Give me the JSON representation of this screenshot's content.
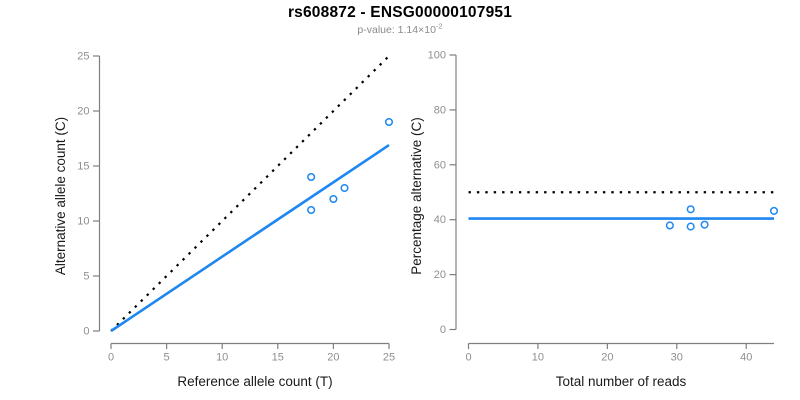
{
  "header": {
    "title": "rs608872 - ENSG00000107951",
    "subtitle_prefix": "p-value: 1.14×10",
    "subtitle_exponent": "-2"
  },
  "colors": {
    "accent_blue": "#1E87F0",
    "identity_black": "#000000",
    "axis_line_gray": "#7f7f7f",
    "tick_label_gray": "#8f8f8f",
    "axis_title_dark": "#1a1a1a",
    "subtitle_gray": "#8a8a8a",
    "background": "#ffffff"
  },
  "chart_data": [
    {
      "type": "scatter",
      "name": "allele-counts-panel",
      "xlabel": "Reference allele count (T)",
      "ylabel": "Alternative allele count (C)",
      "xlim": [
        0,
        25
      ],
      "ylim": [
        0,
        25
      ],
      "xticks": [
        0,
        5,
        10,
        15,
        20,
        25
      ],
      "yticks": [
        0,
        5,
        10,
        15,
        20,
        25
      ],
      "grid": false,
      "points": [
        {
          "x": 18,
          "y": 11
        },
        {
          "x": 18,
          "y": 14
        },
        {
          "x": 20,
          "y": 12
        },
        {
          "x": 21,
          "y": 13
        },
        {
          "x": 25,
          "y": 19
        }
      ],
      "lines": [
        {
          "name": "identity-line",
          "style": "dotted",
          "color_key": "identity_black",
          "x": [
            0,
            25
          ],
          "y": [
            0,
            25
          ]
        },
        {
          "name": "fitted-ratio-line",
          "style": "solid",
          "color_key": "accent_blue",
          "x": [
            0,
            25
          ],
          "y": [
            0,
            16.9
          ]
        }
      ]
    },
    {
      "type": "scatter",
      "name": "percentage-panel",
      "xlabel": "Total number of reads",
      "ylabel": "Percentage alternative (C)",
      "xlim": [
        0,
        44
      ],
      "ylim": [
        0,
        100
      ],
      "xticks": [
        0,
        10,
        20,
        30,
        40
      ],
      "yticks": [
        0,
        20,
        40,
        60,
        80,
        100
      ],
      "grid": false,
      "points": [
        {
          "x": 29,
          "y": 37.9
        },
        {
          "x": 32,
          "y": 43.8
        },
        {
          "x": 32,
          "y": 37.5
        },
        {
          "x": 34,
          "y": 38.2
        },
        {
          "x": 44,
          "y": 43.2
        }
      ],
      "lines": [
        {
          "name": "fifty-percent-line",
          "style": "dotted",
          "color_key": "identity_black",
          "x": [
            0,
            44
          ],
          "y": [
            50,
            50
          ]
        },
        {
          "name": "mean-percentage-line",
          "style": "solid",
          "color_key": "accent_blue",
          "x": [
            0,
            44
          ],
          "y": [
            40.4,
            40.4
          ]
        }
      ]
    }
  ]
}
